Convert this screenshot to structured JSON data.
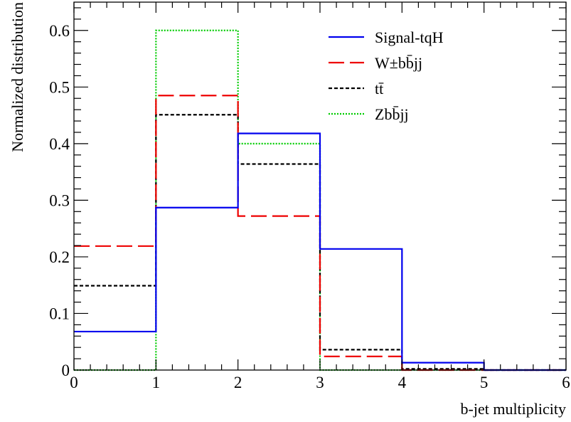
{
  "chart_data": {
    "type": "line",
    "step": true,
    "title": "",
    "xlabel": "b-jet multiplicity",
    "ylabel": "Normalized distribution",
    "xlim": [
      0,
      6
    ],
    "ylim": [
      0,
      0.65
    ],
    "x_ticks": [
      "0",
      "1",
      "2",
      "3",
      "4",
      "5",
      "6"
    ],
    "y_ticks": [
      "0",
      "0.1",
      "0.2",
      "0.3",
      "0.4",
      "0.5",
      "0.6"
    ],
    "bin_edges": [
      0,
      1,
      2,
      3,
      4,
      5,
      6
    ],
    "legend_position": "top-right",
    "series": [
      {
        "name": "Signal-tqH",
        "color": "#0000ee",
        "dash": "solid",
        "values": [
          0.068,
          0.287,
          0.418,
          0.214,
          0.013,
          0.0
        ]
      },
      {
        "name": "W±bb̄jj",
        "color": "#ee0000",
        "dash": "long-dash",
        "values": [
          0.219,
          0.485,
          0.272,
          0.024,
          0.0,
          0.0
        ]
      },
      {
        "name": "tt̄",
        "color": "#000000",
        "dash": "short-dash",
        "values": [
          0.149,
          0.451,
          0.364,
          0.036,
          0.002,
          0.0
        ]
      },
      {
        "name": "Zbb̄jj",
        "color": "#00cc00",
        "dash": "dotted",
        "values": [
          0.0,
          0.6,
          0.4,
          0.0,
          0.0,
          0.0
        ]
      }
    ]
  }
}
